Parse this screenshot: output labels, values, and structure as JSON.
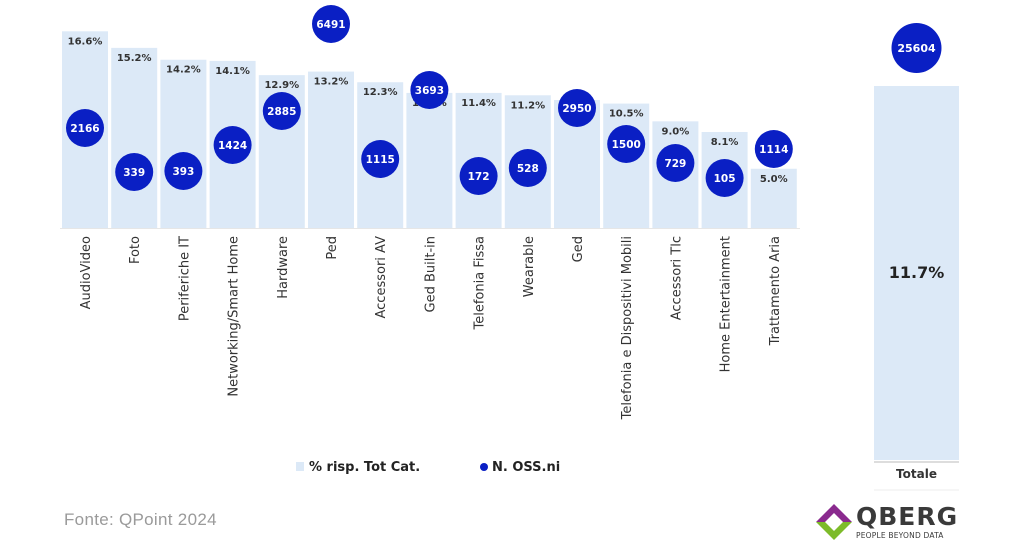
{
  "chart_data": {
    "type": "bar",
    "categories": [
      "AudioVideo",
      "Foto",
      "Periferiche IT",
      "Networking/Smart Home",
      "Hardware",
      "Ped",
      "Accessori AV",
      "Ged Built-in",
      "Telefonia Fissa",
      "Wearable",
      "Ged",
      "Telefonia e Dispositivi Mobili",
      "Accessori Tlc",
      "Home Entertainment",
      "Trattamento Aria"
    ],
    "series": [
      {
        "name": "% risp. Tot Cat.",
        "kind": "bar",
        "color": "#dce9f7",
        "values": [
          16.6,
          15.2,
          14.2,
          14.1,
          12.9,
          13.2,
          12.3,
          11.4,
          11.4,
          11.2,
          10.8,
          10.5,
          9.0,
          8.1,
          5.0
        ],
        "labels": [
          "16.6%",
          "15.2%",
          "14.2%",
          "14.1%",
          "12.9%",
          "13.2%",
          "12.3%",
          "11.4%",
          "11.4%",
          "11.2%",
          "10.8%",
          "10.5%",
          "9.0%",
          "8.1%",
          "5.0%"
        ]
      },
      {
        "name": "N. OSS.ni",
        "kind": "bubble",
        "color": "#0a1fc4",
        "values": [
          2166,
          339,
          393,
          1424,
          2885,
          6491,
          1115,
          3693,
          172,
          528,
          2950,
          1500,
          729,
          105,
          1114
        ],
        "labels": [
          "2166",
          "339",
          "393",
          "1424",
          "2885",
          "6491",
          "1115",
          "3693",
          "172",
          "528",
          "2950",
          "1500",
          "729",
          "105",
          "1114"
        ]
      }
    ],
    "total": {
      "category": "Totale",
      "pct_value": 11.7,
      "pct_label": "11.7%",
      "count_value": 25604,
      "count_label": "25604"
    },
    "ylim": [
      0,
      17
    ],
    "legend_position": "bottom",
    "grid": false
  },
  "source": "Fonte: QPoint 2024",
  "logo": {
    "name": "QBERG",
    "tagline": "PEOPLE BEYOND DATA",
    "colors": [
      "#8a2a8e",
      "#7dbb2a"
    ]
  }
}
